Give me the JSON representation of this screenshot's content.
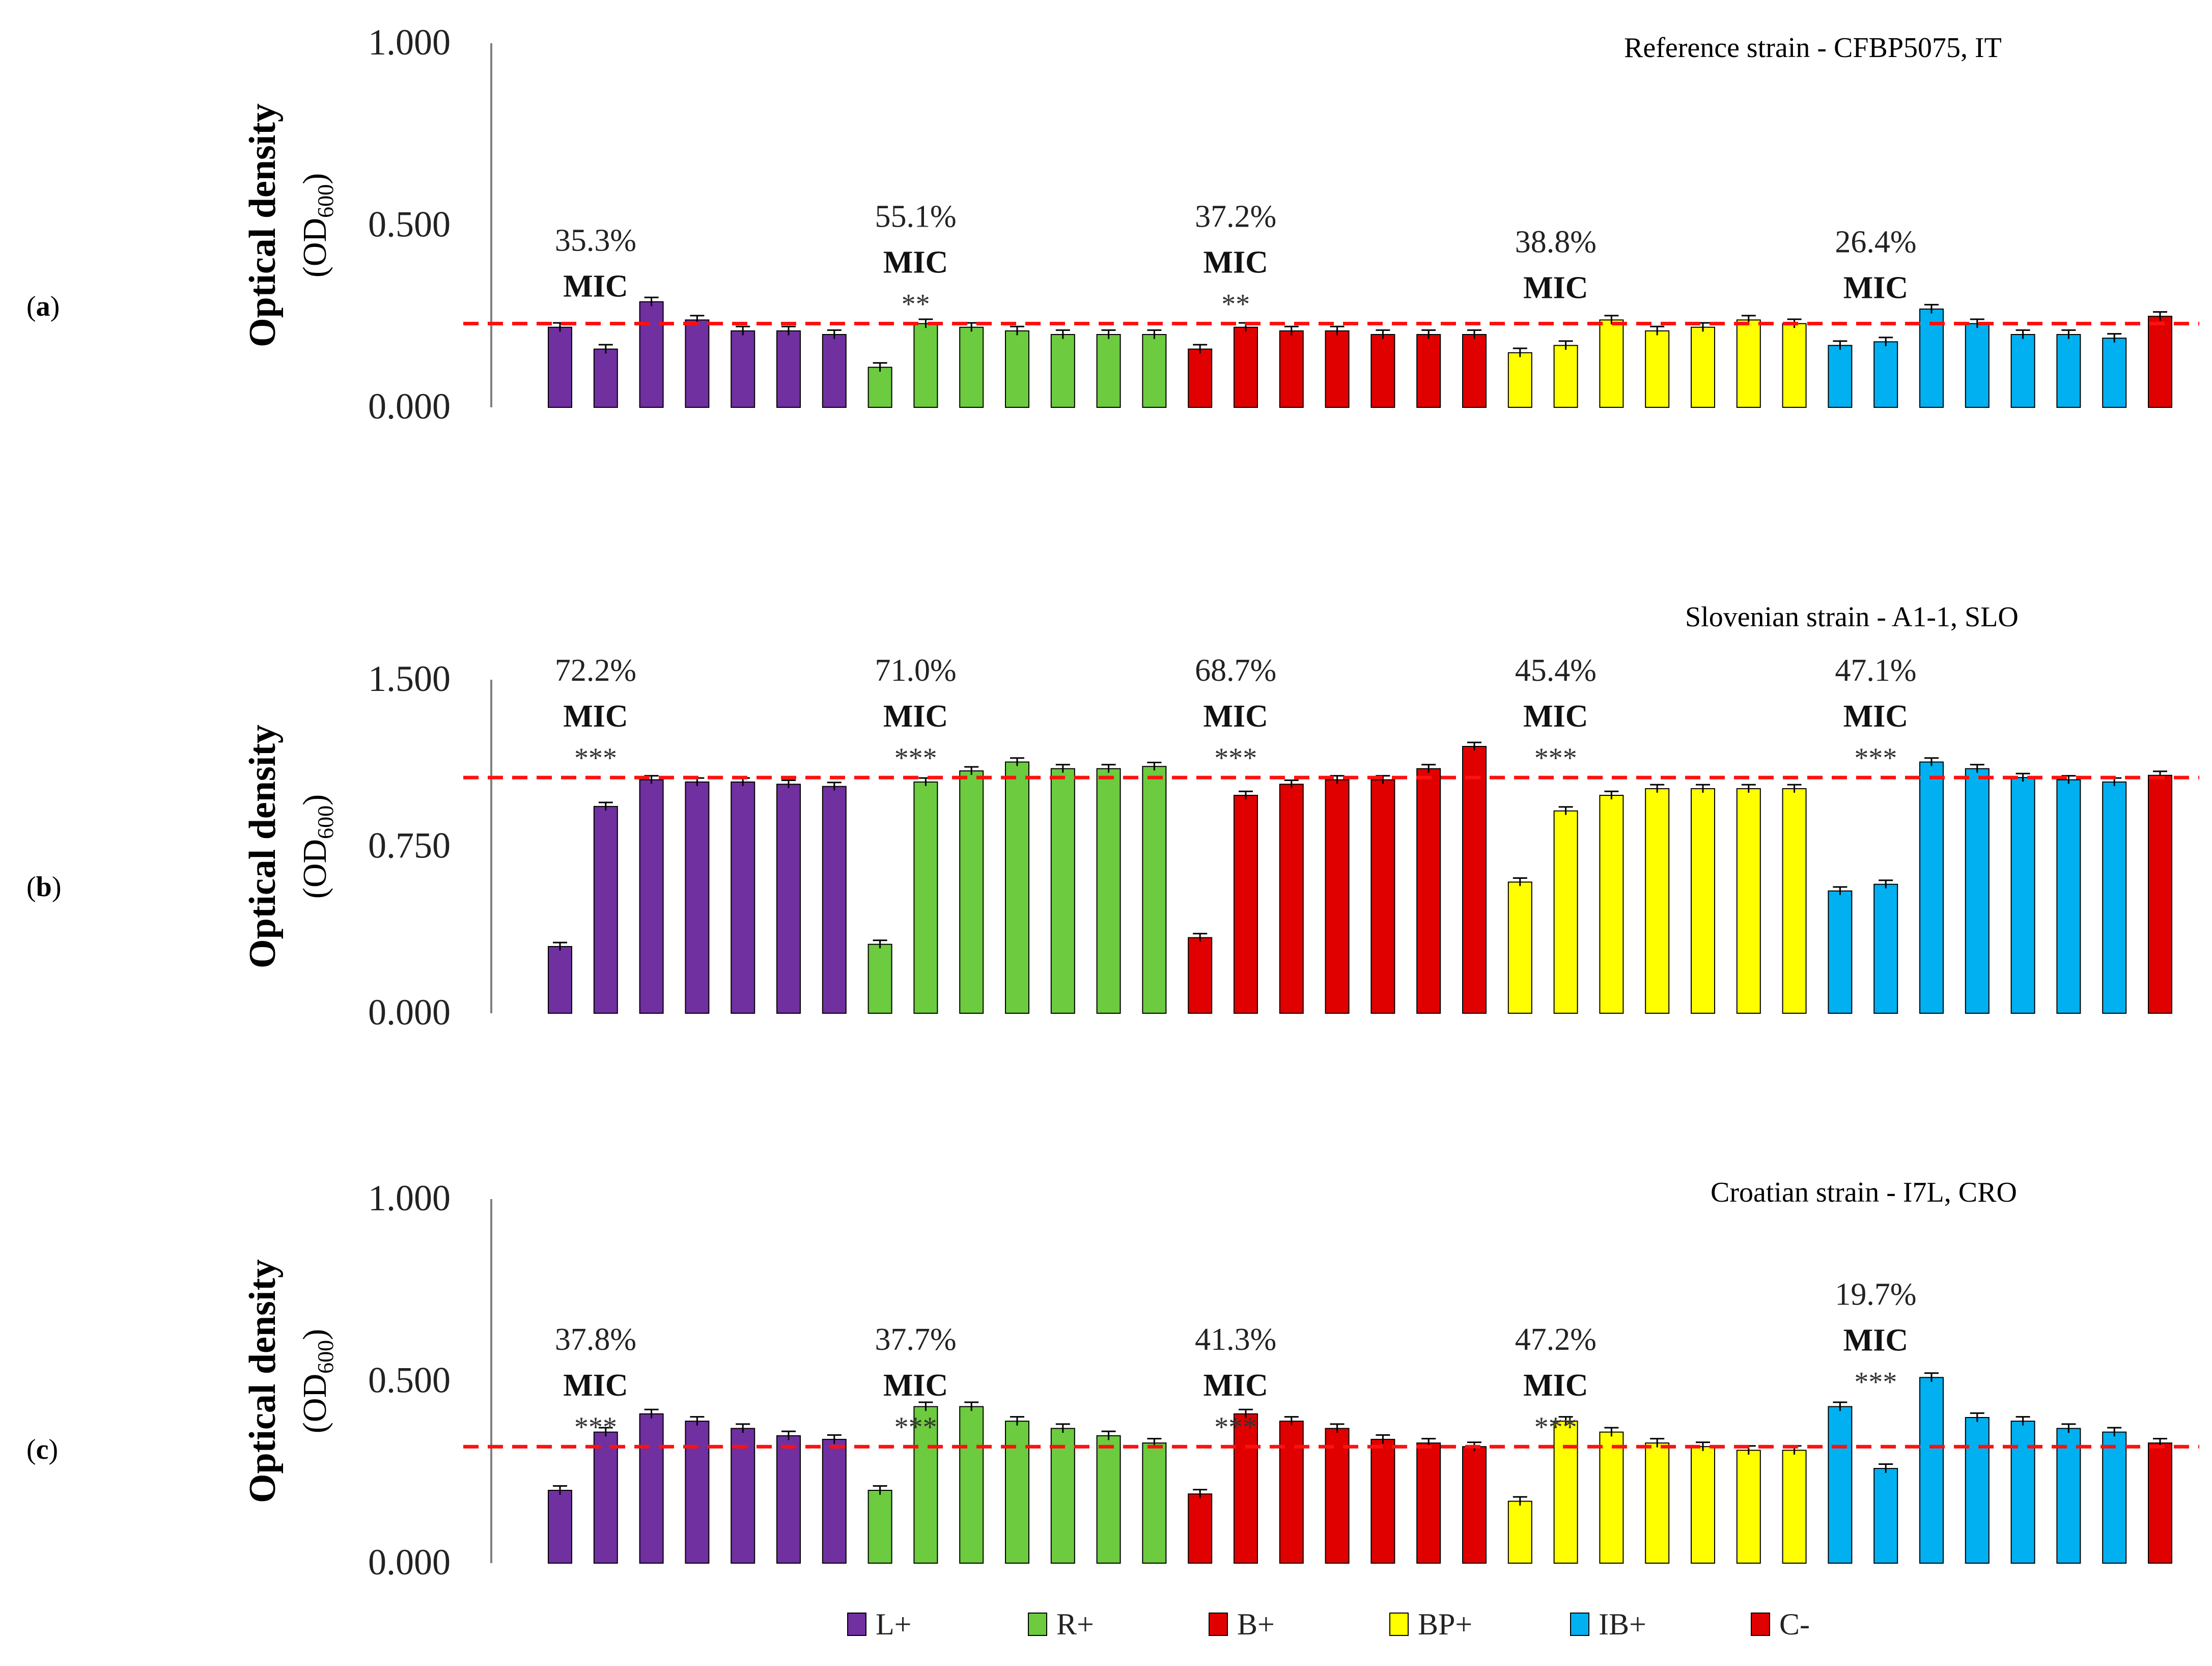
{
  "figure": {
    "legend": [
      {
        "key": "L+",
        "label": "L+",
        "color": "#7030A0"
      },
      {
        "key": "R+",
        "label": "R+",
        "color": "#6CCB3E"
      },
      {
        "key": "B+",
        "label": "B+",
        "color": "#E00000"
      },
      {
        "key": "BP+",
        "label": "BP+",
        "color": "#FFFF00"
      },
      {
        "key": "IB+",
        "label": "IB+",
        "color": "#00B0F0"
      },
      {
        "key": "C-",
        "label": "C-",
        "color": "#E00000"
      }
    ],
    "mic_word": "MIC",
    "ylabel_line1": "Optical density",
    "ylabel_line2_main": "(OD",
    "ylabel_line2_sub": "600",
    "ylabel_line2_close": ")"
  },
  "chart_data": [
    {
      "panel": "(a)",
      "type": "bar",
      "title": "Reference strain - CFBP5075, IT",
      "ylim": [
        0,
        1.0
      ],
      "yticks": [
        0,
        0.5,
        1.0
      ],
      "ytick_labels": [
        "0.000",
        "0.500",
        "1.000"
      ],
      "reference_line": 0.23,
      "series": [
        {
          "name": "L+",
          "values": [
            0.22,
            0.16,
            0.29,
            0.24,
            0.21,
            0.21,
            0.2
          ]
        },
        {
          "name": "R+",
          "values": [
            0.11,
            0.23,
            0.22,
            0.21,
            0.2,
            0.2,
            0.2
          ]
        },
        {
          "name": "B+",
          "values": [
            0.16,
            0.22,
            0.21,
            0.21,
            0.2,
            0.2,
            0.2
          ]
        },
        {
          "name": "BP+",
          "values": [
            0.15,
            0.17,
            0.24,
            0.21,
            0.22,
            0.24,
            0.23
          ]
        },
        {
          "name": "IB+",
          "values": [
            0.17,
            0.18,
            0.27,
            0.23,
            0.2,
            0.2,
            0.19
          ]
        },
        {
          "name": "C-",
          "values": [
            0.25
          ]
        }
      ],
      "annotations": [
        {
          "group": 0,
          "percent": "35.3%",
          "stars": ""
        },
        {
          "group": 1,
          "percent": "55.1%",
          "stars": "**"
        },
        {
          "group": 2,
          "percent": "37.2%",
          "stars": "**"
        },
        {
          "group": 3,
          "percent": "38.8%",
          "stars": ""
        },
        {
          "group": 4,
          "percent": "26.4%",
          "stars": ""
        }
      ]
    },
    {
      "panel": "(b)",
      "type": "bar",
      "title": "Slovenian strain - A1-1, SLO",
      "ylim": [
        0,
        1.5
      ],
      "yticks": [
        0,
        0.75,
        1.5
      ],
      "ytick_labels": [
        "0.000",
        "0.750",
        "1.500"
      ],
      "reference_line": 1.06,
      "series": [
        {
          "name": "L+",
          "values": [
            0.3,
            0.93,
            1.05,
            1.04,
            1.04,
            1.03,
            1.02
          ]
        },
        {
          "name": "R+",
          "values": [
            0.31,
            1.04,
            1.09,
            1.13,
            1.1,
            1.1,
            1.11
          ]
        },
        {
          "name": "B+",
          "values": [
            0.34,
            0.98,
            1.03,
            1.05,
            1.05,
            1.1,
            1.2
          ]
        },
        {
          "name": "BP+",
          "values": [
            0.59,
            0.91,
            0.98,
            1.01,
            1.01,
            1.01,
            1.01
          ]
        },
        {
          "name": "IB+",
          "values": [
            0.55,
            0.58,
            1.13,
            1.1,
            1.06,
            1.05,
            1.04
          ]
        },
        {
          "name": "C-",
          "values": [
            1.07
          ]
        }
      ],
      "annotations": [
        {
          "group": 0,
          "percent": "72.2%",
          "stars": "***"
        },
        {
          "group": 1,
          "percent": "71.0%",
          "stars": "***"
        },
        {
          "group": 2,
          "percent": "68.7%",
          "stars": "***"
        },
        {
          "group": 3,
          "percent": "45.4%",
          "stars": "***"
        },
        {
          "group": 4,
          "percent": "47.1%",
          "stars": "***"
        }
      ]
    },
    {
      "panel": "(c)",
      "type": "bar",
      "title": "Croatian strain - I7L, CRO",
      "ylim": [
        0,
        1.0
      ],
      "yticks": [
        0,
        0.5,
        1.0
      ],
      "ytick_labels": [
        "0.000",
        "0.500",
        "1.000"
      ],
      "reference_line": 0.32,
      "series": [
        {
          "name": "L+",
          "values": [
            0.2,
            0.36,
            0.41,
            0.39,
            0.37,
            0.35,
            0.34
          ]
        },
        {
          "name": "R+",
          "values": [
            0.2,
            0.43,
            0.43,
            0.39,
            0.37,
            0.35,
            0.33
          ]
        },
        {
          "name": "B+",
          "values": [
            0.19,
            0.41,
            0.39,
            0.37,
            0.34,
            0.33,
            0.32
          ]
        },
        {
          "name": "BP+",
          "values": [
            0.17,
            0.39,
            0.36,
            0.33,
            0.32,
            0.31,
            0.31
          ]
        },
        {
          "name": "IB+",
          "values": [
            0.43,
            0.26,
            0.51,
            0.4,
            0.39,
            0.37,
            0.36
          ]
        },
        {
          "name": "C-",
          "values": [
            0.33
          ]
        }
      ],
      "annotations": [
        {
          "group": 0,
          "percent": "37.8%",
          "stars": "***"
        },
        {
          "group": 1,
          "percent": "37.7%",
          "stars": "***"
        },
        {
          "group": 2,
          "percent": "41.3%",
          "stars": "***"
        },
        {
          "group": 3,
          "percent": "47.2%",
          "stars": "***"
        },
        {
          "group": 4,
          "percent": "19.7%",
          "stars": "***"
        }
      ]
    }
  ]
}
